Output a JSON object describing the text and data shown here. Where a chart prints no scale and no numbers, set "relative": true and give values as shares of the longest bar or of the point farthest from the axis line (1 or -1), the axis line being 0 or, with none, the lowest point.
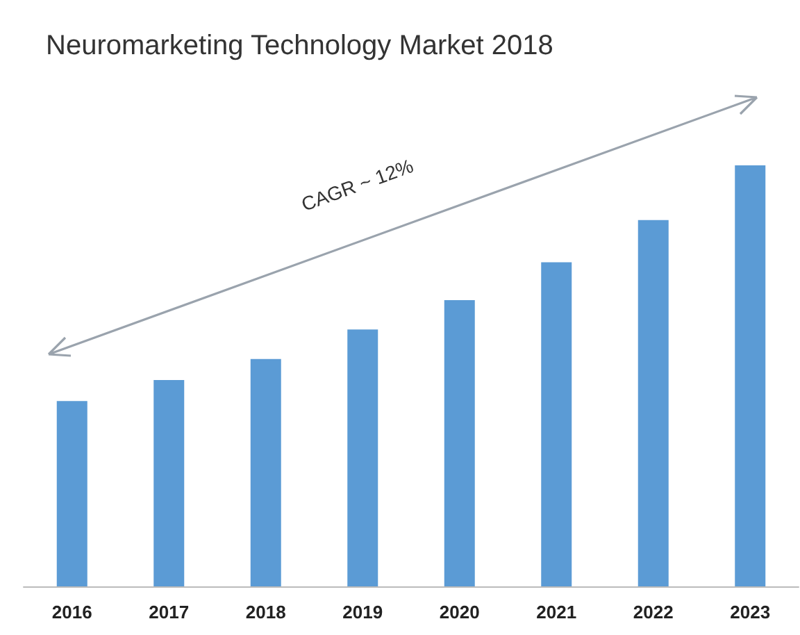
{
  "chart_data": {
    "type": "bar",
    "title": "Neuromarketing Technology Market 2018",
    "categories": [
      "2016",
      "2017",
      "2018",
      "2019",
      "2020",
      "2021",
      "2022",
      "2023"
    ],
    "relative": true,
    "series": [
      {
        "color": "#5b9bd5",
        "values": [
          0.44,
          0.49,
          0.54,
          0.61,
          0.68,
          0.77,
          0.87,
          1
        ]
      }
    ],
    "annotations": [
      "CAGR ~ 12%"
    ]
  }
}
